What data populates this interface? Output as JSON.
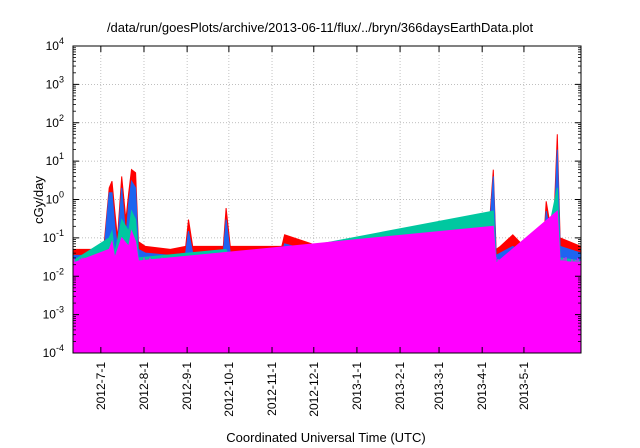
{
  "chart_data": {
    "type": "area",
    "title": "/data/run/goesPlots/archive/2013-06-11/flux/../bryn/366daysEarthData.plot",
    "xlabel": "Coordinated Universal Time (UTC)",
    "ylabel": "cGy/day",
    "yscale": "log",
    "ylim": [
      0.0001,
      10000
    ],
    "xlim": [
      "2012-06-11",
      "2013-06-11"
    ],
    "grid": true,
    "y_ticks": [
      {
        "value": 0.0001,
        "base": "10",
        "exp": "-4"
      },
      {
        "value": 0.001,
        "base": "10",
        "exp": "-3"
      },
      {
        "value": 0.01,
        "base": "10",
        "exp": "-2"
      },
      {
        "value": 0.1,
        "base": "10",
        "exp": "-1"
      },
      {
        "value": 1,
        "base": "10",
        "exp": "0"
      },
      {
        "value": 10,
        "base": "10",
        "exp": "1"
      },
      {
        "value": 100,
        "base": "10",
        "exp": "2"
      },
      {
        "value": 1000,
        "base": "10",
        "exp": "3"
      },
      {
        "value": 10000,
        "base": "10",
        "exp": "4"
      }
    ],
    "x_ticks": [
      {
        "date": "2012-07-01",
        "label": "2012-7-1"
      },
      {
        "date": "2012-08-01",
        "label": "2012-8-1"
      },
      {
        "date": "2012-09-01",
        "label": "2012-9-1"
      },
      {
        "date": "2012-10-01",
        "label": "2012-10-1"
      },
      {
        "date": "2012-11-01",
        "label": "2012-11-1"
      },
      {
        "date": "2012-12-01",
        "label": "2012-12-1"
      },
      {
        "date": "2013-01-01",
        "label": "2013-1-1"
      },
      {
        "date": "2013-02-01",
        "label": "2013-2-1"
      },
      {
        "date": "2013-03-01",
        "label": "2013-3-1"
      },
      {
        "date": "2013-04-01",
        "label": "2013-4-1"
      },
      {
        "date": "2013-05-01",
        "label": "2013-5-1"
      }
    ],
    "series": [
      {
        "color": "#ff0000",
        "x": [
          "2012-06-11",
          "2012-07-03",
          "2012-07-07",
          "2012-07-09",
          "2012-07-11",
          "2012-07-13",
          "2012-07-16",
          "2012-07-19",
          "2012-07-21",
          "2012-07-23",
          "2012-07-26",
          "2012-07-28",
          "2012-08-02",
          "2012-08-20",
          "2012-08-31",
          "2012-09-02",
          "2012-09-05",
          "2012-09-27",
          "2012-09-29",
          "2012-10-02",
          "2012-10-20",
          "2012-11-08",
          "2012-11-10",
          "2012-12-05",
          "2013-01-15",
          "2013-02-10",
          "2013-02-28",
          "2013-03-18",
          "2013-04-05",
          "2013-04-09",
          "2013-04-11",
          "2013-04-14",
          "2013-04-23",
          "2013-05-01",
          "2013-05-10",
          "2013-05-15",
          "2013-05-17",
          "2013-05-21",
          "2013-05-23",
          "2013-05-25",
          "2013-05-27",
          "2013-06-11"
        ],
        "values": [
          0.05,
          0.05,
          2.0,
          3.0,
          0.5,
          0.1,
          4.0,
          0.3,
          1.5,
          6.0,
          5.0,
          0.08,
          0.06,
          0.05,
          0.06,
          0.3,
          0.06,
          0.06,
          0.6,
          0.06,
          0.06,
          0.06,
          0.12,
          0.06,
          0.06,
          0.06,
          0.06,
          0.06,
          0.06,
          6.0,
          0.05,
          0.06,
          0.12,
          0.06,
          0.05,
          0.06,
          0.9,
          0.12,
          0.8,
          50.0,
          0.1,
          0.06
        ]
      },
      {
        "color": "#1e64f0",
        "x": [
          "2012-06-11",
          "2012-07-03",
          "2012-07-07",
          "2012-07-09",
          "2012-07-11",
          "2012-07-13",
          "2012-07-16",
          "2012-07-19",
          "2012-07-21",
          "2012-07-23",
          "2012-07-26",
          "2012-07-28",
          "2012-08-02",
          "2012-08-20",
          "2012-08-31",
          "2012-09-02",
          "2012-09-05",
          "2012-09-27",
          "2012-09-29",
          "2012-10-02",
          "2012-10-20",
          "2012-11-08",
          "2012-11-10",
          "2012-12-05",
          "2013-01-15",
          "2013-02-10",
          "2013-02-28",
          "2013-03-18",
          "2013-04-05",
          "2013-04-09",
          "2013-04-11",
          "2013-04-14",
          "2013-04-23",
          "2013-05-01",
          "2013-05-10",
          "2013-05-15",
          "2013-05-17",
          "2013-05-21",
          "2013-05-23",
          "2013-05-25",
          "2013-05-27",
          "2013-06-11"
        ],
        "values": [
          0.035,
          0.035,
          1.5,
          1.5,
          0.2,
          0.06,
          2.0,
          0.1,
          0.8,
          3.0,
          2.0,
          0.05,
          0.04,
          0.035,
          0.04,
          0.15,
          0.04,
          0.04,
          0.3,
          0.04,
          0.04,
          0.04,
          0.07,
          0.04,
          0.04,
          0.04,
          0.04,
          0.04,
          0.04,
          4.0,
          0.035,
          0.04,
          0.06,
          0.04,
          0.035,
          0.04,
          0.5,
          0.08,
          0.4,
          20.0,
          0.06,
          0.04
        ]
      },
      {
        "color": "#00c8a0",
        "x": [
          "2012-06-11",
          "2012-07-07",
          "2012-07-09",
          "2012-07-11",
          "2012-07-16",
          "2012-07-21",
          "2012-07-23",
          "2012-07-26",
          "2012-07-28",
          "2012-09-29",
          "2012-10-02",
          "2013-04-09",
          "2013-04-11",
          "2013-05-17",
          "2013-05-25",
          "2013-05-27",
          "2013-06-11"
        ],
        "values": [
          0.025,
          0.1,
          0.15,
          0.04,
          0.3,
          0.15,
          0.5,
          0.3,
          0.03,
          0.05,
          0.025,
          0.5,
          0.025,
          0.08,
          2.0,
          0.03,
          0.025
        ]
      },
      {
        "color": "#ff00ff",
        "x": [
          "2012-06-11",
          "2012-07-07",
          "2012-07-09",
          "2012-07-11",
          "2012-07-16",
          "2012-07-21",
          "2012-07-23",
          "2012-07-26",
          "2012-07-28",
          "2013-04-09",
          "2013-04-11",
          "2013-05-25",
          "2013-05-27",
          "2013-06-11"
        ],
        "values": [
          0.022,
          0.05,
          0.08,
          0.03,
          0.1,
          0.06,
          0.15,
          0.08,
          0.025,
          0.2,
          0.022,
          0.5,
          0.025,
          0.022
        ],
        "floor": 0.003
      }
    ]
  }
}
